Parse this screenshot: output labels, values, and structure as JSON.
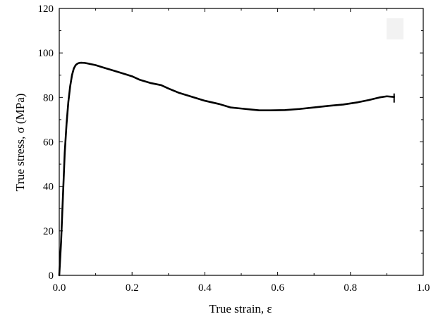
{
  "chart_data": {
    "type": "line",
    "title": "",
    "xlabel": "True strain, ε",
    "ylabel": "True stress, σ (MPa)",
    "xlim": [
      0.0,
      1.0
    ],
    "ylim": [
      0,
      120
    ],
    "xticks": [
      "0.0",
      "0.2",
      "0.4",
      "0.6",
      "0.8",
      "1.0"
    ],
    "yticks": [
      "0",
      "20",
      "40",
      "60",
      "80",
      "100",
      "120"
    ],
    "grid": false,
    "legend": "top-right",
    "line_color": "#000000",
    "series": [
      {
        "x": [
          0.0,
          0.005,
          0.01,
          0.015,
          0.02,
          0.025,
          0.03,
          0.035,
          0.04,
          0.045,
          0.05,
          0.055,
          0.06,
          0.07,
          0.08,
          0.1,
          0.12,
          0.15,
          0.18,
          0.2,
          0.22,
          0.25,
          0.28,
          0.3,
          0.33,
          0.36,
          0.4,
          0.44,
          0.47,
          0.5,
          0.53,
          0.55,
          0.58,
          0.62,
          0.66,
          0.7,
          0.74,
          0.78,
          0.82,
          0.85,
          0.88,
          0.9,
          0.92
        ],
        "y": [
          0,
          15,
          35,
          55,
          68,
          78,
          85,
          90,
          93,
          94.5,
          95.2,
          95.5,
          95.6,
          95.5,
          95.2,
          94.5,
          93.5,
          92,
          90.5,
          89.5,
          88,
          86.5,
          85.5,
          84,
          82,
          80.5,
          78.5,
          77,
          75.5,
          75,
          74.5,
          74.2,
          74.2,
          74.3,
          74.8,
          75.5,
          76.2,
          76.8,
          77.8,
          78.8,
          80,
          80.5,
          80.2
        ]
      }
    ]
  }
}
